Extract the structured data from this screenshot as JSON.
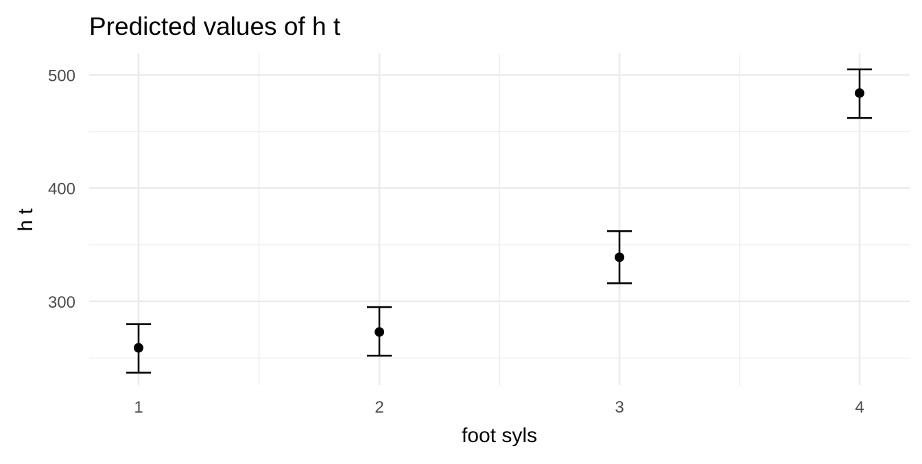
{
  "chart_data": {
    "type": "scatter",
    "title": "Predicted values of h t",
    "xlabel": "foot syls",
    "ylabel": "h t",
    "x_categories": [
      "1",
      "2",
      "3",
      "4"
    ],
    "points": [
      {
        "x": "1",
        "y": 259,
        "ci_low": 237,
        "ci_high": 280
      },
      {
        "x": "2",
        "y": 273,
        "ci_low": 252,
        "ci_high": 295
      },
      {
        "x": "3",
        "y": 339,
        "ci_low": 316,
        "ci_high": 362
      },
      {
        "x": "4",
        "y": 484,
        "ci_low": 462,
        "ci_high": 505
      }
    ],
    "ylim": [
      226,
      519
    ],
    "y_ticks": [
      300,
      400,
      500
    ],
    "y_minor_ticks": [
      250,
      350,
      450
    ],
    "grid": true,
    "legend": "none",
    "colors": {
      "point": "#000000",
      "errorbar": "#000000",
      "grid": "#ebebeb",
      "tick_text": "#4d4d4d"
    }
  }
}
